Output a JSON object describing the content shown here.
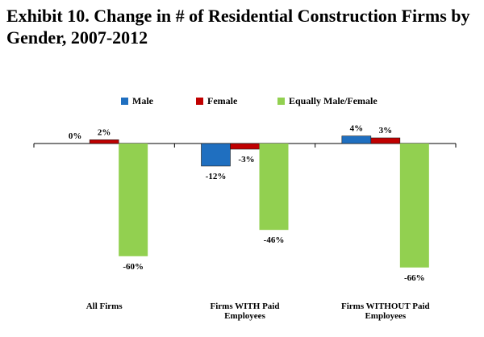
{
  "chart_data": {
    "type": "bar",
    "title": "Exhibit 10.  Change in # of Residential Construction Firms by Gender, 2007-2012",
    "title_lines": [
      "Exhibit 10.  Change in # of Residential Construction Firms by",
      "Gender, 2007-2012"
    ],
    "categories": [
      [
        "All Firms"
      ],
      [
        "Firms WITH Paid",
        "Employees"
      ],
      [
        "Firms WITHOUT Paid",
        "Employees"
      ]
    ],
    "series": [
      {
        "name": "Male",
        "color": "#1f6fc0",
        "values": [
          0,
          -12,
          4
        ],
        "labels": [
          "0%",
          "-12%",
          "4%"
        ]
      },
      {
        "name": "Female",
        "color": "#c00000",
        "values": [
          2,
          -3,
          3
        ],
        "labels": [
          "2%",
          "-3%",
          "3%"
        ]
      },
      {
        "name": "Equally Male/Female",
        "color": "#92d050",
        "values": [
          -60,
          -46,
          -66
        ],
        "labels": [
          "-60%",
          "-46%",
          "-66%"
        ]
      }
    ],
    "ylim": [
      -70,
      10
    ],
    "legend_position": "top",
    "xlabel": "",
    "ylabel": "",
    "grid": false
  }
}
